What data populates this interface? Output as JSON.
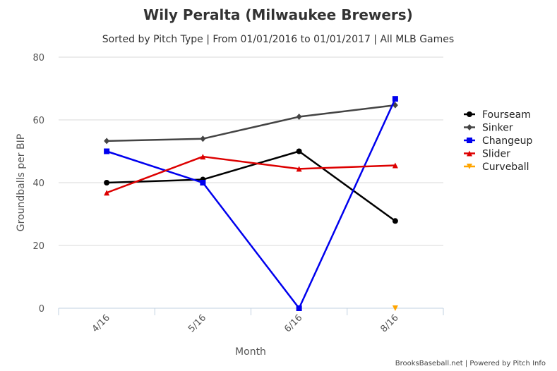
{
  "chart_data": {
    "type": "line",
    "title": "Wily Peralta (Milwaukee Brewers)",
    "subtitle": "Sorted by Pitch Type | From 01/01/2016 to 01/01/2017 | All MLB Games",
    "xlabel": "Month",
    "ylabel": "Groundballs per BIP",
    "categories": [
      "4/16",
      "5/16",
      "6/16",
      "8/16"
    ],
    "ylim": [
      0,
      80
    ],
    "yticks": [
      0,
      20,
      40,
      60,
      80
    ],
    "grid": true,
    "legend_position": "right",
    "credits": "BrooksBaseball.net | Powered by Pitch Info",
    "series": [
      {
        "name": "Fourseam",
        "color": "#000000",
        "marker": "circle",
        "values": [
          40.0,
          41.0,
          50.0,
          27.8
        ]
      },
      {
        "name": "Sinker",
        "color": "#444444",
        "marker": "diamond",
        "values": [
          53.3,
          54.0,
          61.0,
          64.7
        ]
      },
      {
        "name": "Changeup",
        "color": "#0000ee",
        "marker": "square",
        "values": [
          50.0,
          40.0,
          0.0,
          66.7
        ]
      },
      {
        "name": "Slider",
        "color": "#dd0000",
        "marker": "triangle",
        "values": [
          36.8,
          48.3,
          44.4,
          45.5
        ]
      },
      {
        "name": "Curveball",
        "color": "#ffa500",
        "marker": "triangle-down",
        "values": [
          null,
          null,
          null,
          0.0
        ]
      }
    ]
  }
}
